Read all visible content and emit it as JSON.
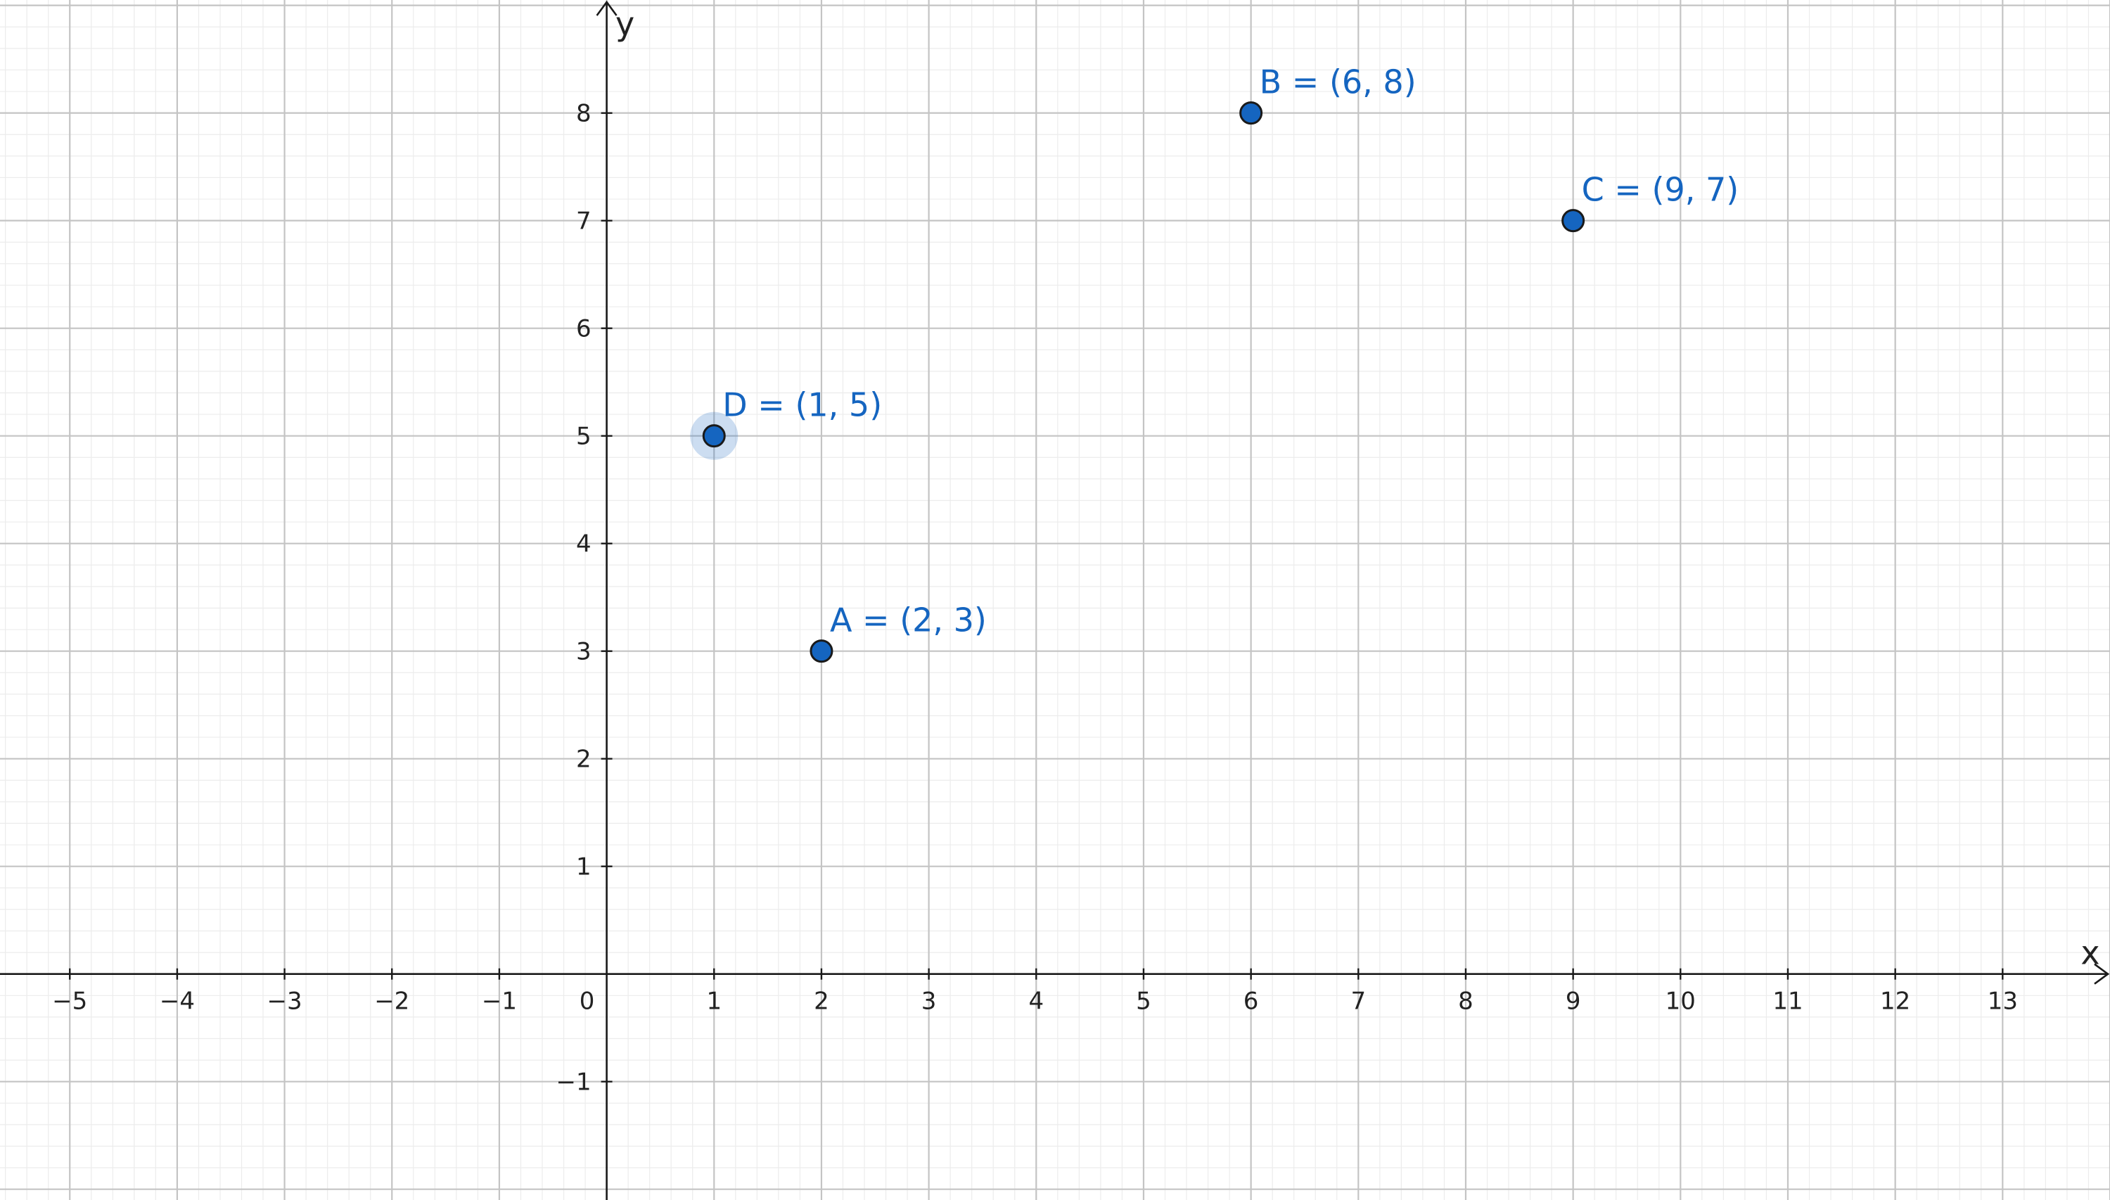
{
  "chart_data": {
    "type": "scatter",
    "xlabel": "x",
    "ylabel": "y",
    "xlim": [
      -5.65,
      14.0
    ],
    "ylim": [
      -2.1,
      9.05
    ],
    "grid": true,
    "minor_grid_subdivisions": 5,
    "x_ticks": [
      "−5",
      "−4",
      "−3",
      "−2",
      "−1",
      "0",
      "1",
      "2",
      "3",
      "4",
      "5",
      "6",
      "7",
      "8",
      "9",
      "10",
      "11",
      "12",
      "13"
    ],
    "y_ticks": [
      "−1",
      "1",
      "2",
      "3",
      "4",
      "5",
      "6",
      "7",
      "8"
    ],
    "points": [
      {
        "name": "A",
        "label": "A = (2, 3)",
        "x": 2,
        "y": 3,
        "selected": false
      },
      {
        "name": "B",
        "label": "B = (6, 8)",
        "x": 6,
        "y": 8,
        "selected": false
      },
      {
        "name": "C",
        "label": "C = (9, 7)",
        "x": 9,
        "y": 7,
        "selected": false
      },
      {
        "name": "D",
        "label": "D = (1, 5)",
        "x": 1,
        "y": 5,
        "selected": true
      }
    ],
    "point_color": "#1565c0",
    "point_outline_color": "#1a1a1a",
    "label_color": "#1565c0",
    "selection_halo_color": "#1565c0"
  }
}
